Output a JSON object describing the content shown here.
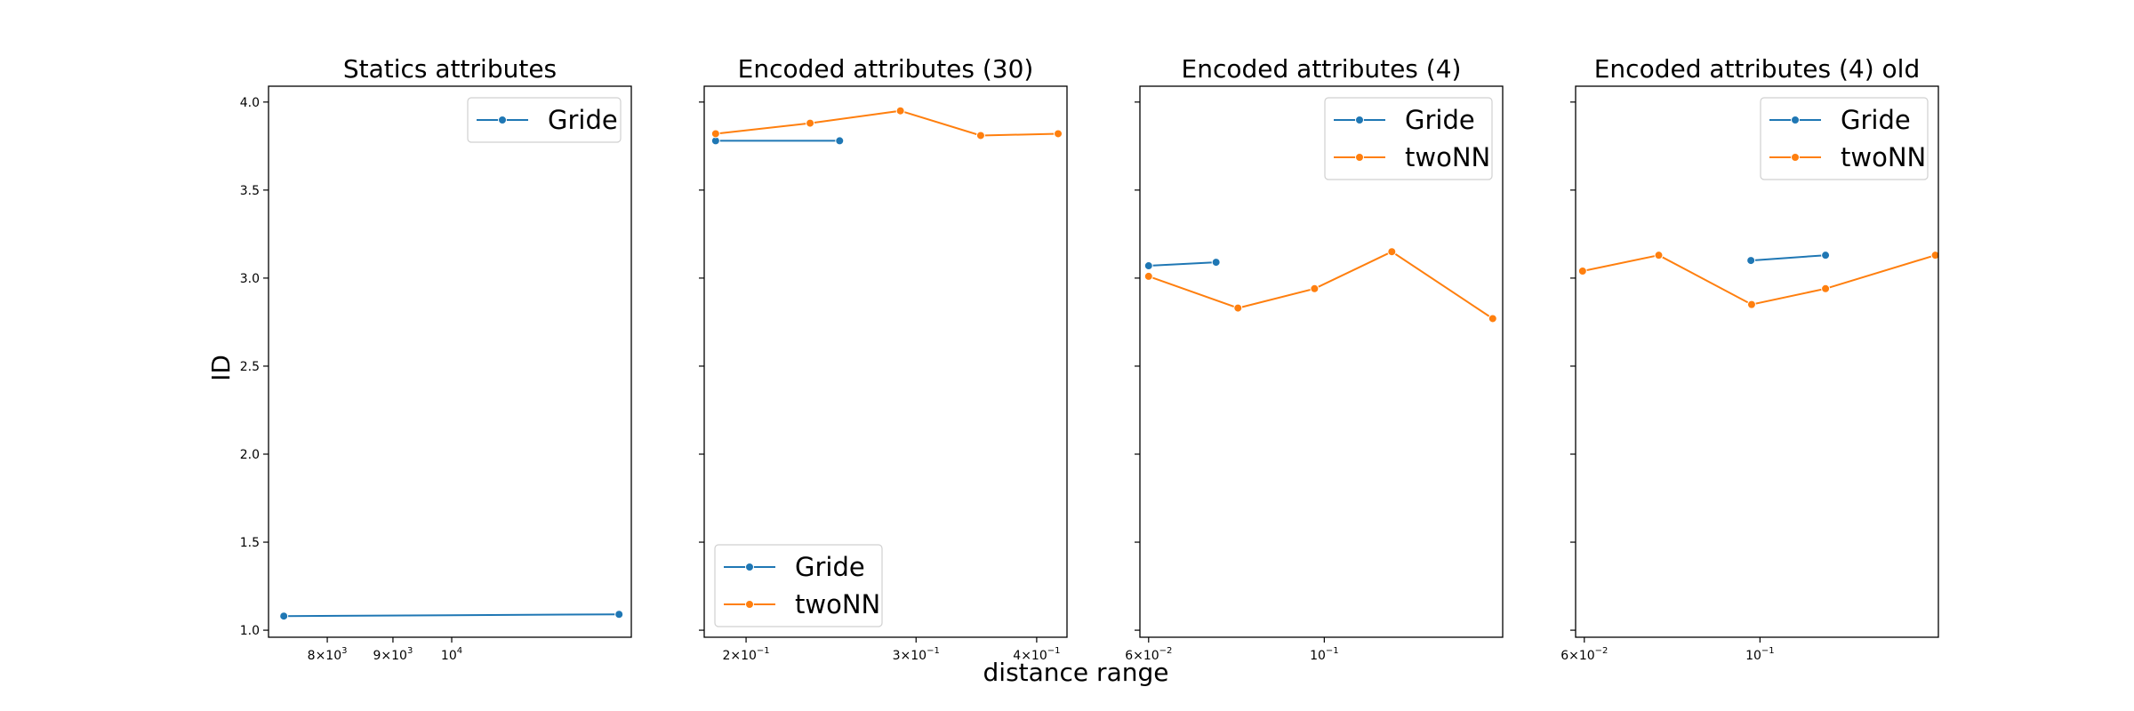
{
  "figure": {
    "ylabel": "ID",
    "xlabel": "distance range"
  },
  "colors": {
    "Gride": "#1f77b4",
    "twoNN": "#ff7f0e"
  },
  "chart_data": [
    {
      "type": "line",
      "title": "Statics attributes",
      "xscale": "log",
      "xlim": [
        7200,
        13800
      ],
      "ylim": [
        0.96,
        4.09
      ],
      "yticks": [
        1.0,
        1.5,
        2.0,
        2.5,
        3.0,
        3.5,
        4.0
      ],
      "ytick_labels": [
        "1.0",
        "1.5",
        "2.0",
        "2.5",
        "3.0",
        "3.5",
        "4.0"
      ],
      "xticks": [
        {
          "value": 8000,
          "base": "8×10",
          "exp": "3"
        },
        {
          "value": 9000,
          "base": "9×10",
          "exp": "3"
        },
        {
          "value": 10000,
          "base": "10",
          "exp": "4"
        }
      ],
      "legend": "upper right",
      "series": [
        {
          "name": "Gride",
          "x": [
            7400,
            13500
          ],
          "y": [
            1.08,
            1.09
          ]
        }
      ]
    },
    {
      "type": "line",
      "title": "Encoded attributes (30)",
      "xscale": "log",
      "xlim": [
        0.181,
        0.43
      ],
      "ylim": [
        0.96,
        4.09
      ],
      "xticks": [
        {
          "value": 0.2,
          "base": "2×10",
          "exp": "−1"
        },
        {
          "value": 0.3,
          "base": "3×10",
          "exp": "−1"
        },
        {
          "value": 0.4,
          "base": "4×10",
          "exp": "−1"
        }
      ],
      "legend": "lower left",
      "series": [
        {
          "name": "Gride",
          "x": [
            0.186,
            0.25
          ],
          "y": [
            3.78,
            3.78
          ]
        },
        {
          "name": "twoNN",
          "x": [
            0.186,
            0.233,
            0.289,
            0.35,
            0.421
          ],
          "y": [
            3.82,
            3.88,
            3.95,
            3.81,
            3.82
          ]
        }
      ]
    },
    {
      "type": "line",
      "title": "Encoded attributes (4)",
      "xscale": "log",
      "xlim": [
        0.0585,
        0.168
      ],
      "ylim": [
        0.96,
        4.09
      ],
      "xticks": [
        {
          "value": 0.06,
          "base": "6×10",
          "exp": "−2"
        },
        {
          "value": 0.1,
          "base": "10",
          "exp": "−1"
        }
      ],
      "legend": "upper right",
      "series": [
        {
          "name": "Gride",
          "x": [
            0.06,
            0.073
          ],
          "y": [
            3.07,
            3.09
          ]
        },
        {
          "name": "twoNN",
          "x": [
            0.06,
            0.0778,
            0.0972,
            0.1217,
            0.1632
          ],
          "y": [
            3.01,
            2.83,
            2.94,
            3.15,
            2.77
          ]
        }
      ]
    },
    {
      "type": "line",
      "title": "Encoded attributes (4) old",
      "xscale": "log",
      "xlim": [
        0.0585,
        0.168
      ],
      "ylim": [
        0.96,
        4.09
      ],
      "xticks": [
        {
          "value": 0.06,
          "base": "6×10",
          "exp": "−2"
        },
        {
          "value": 0.1,
          "base": "10",
          "exp": "−1"
        }
      ],
      "legend": "upper right",
      "series": [
        {
          "name": "Gride",
          "x": [
            0.0974,
            0.121
          ],
          "y": [
            3.1,
            3.13
          ]
        },
        {
          "name": "twoNN",
          "x": [
            0.0597,
            0.0745,
            0.0976,
            0.121,
            0.1665
          ],
          "y": [
            3.04,
            3.13,
            2.85,
            2.94,
            3.13
          ]
        }
      ]
    }
  ]
}
